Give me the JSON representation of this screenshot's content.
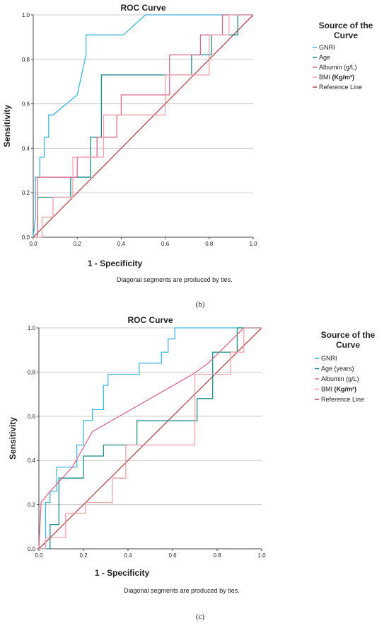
{
  "chart_data": [
    {
      "type": "line",
      "panel_label": "(b)",
      "title": "ROC Curve",
      "xlabel": "1 - Specificity",
      "ylabel": "Sensitivity",
      "xlim": [
        0,
        1
      ],
      "ylim": [
        0,
        1
      ],
      "xticks": [
        "0.0",
        "0.2",
        "0.4",
        "0.6",
        "0.8",
        "1.0"
      ],
      "yticks": [
        "0.0",
        "0.2",
        "0.4",
        "0.6",
        "0.8",
        "1.0"
      ],
      "grid": "horizontal",
      "footnote": "Diagonal segments are produced by ties.",
      "legend": {
        "title": "Source of the Curve",
        "placement": "right",
        "bmi_unit": "(Kg/m²)"
      },
      "series": [
        {
          "name": "GNRI",
          "color": "#3FB8DD",
          "x": [
            0,
            0.01,
            0.01,
            0.03,
            0.03,
            0.05,
            0.05,
            0.07,
            0.07,
            0.09,
            0.09,
            0.2,
            0.2,
            0.22,
            0.22,
            0.24,
            0.24,
            0.41,
            0.51,
            1
          ],
          "y": [
            0,
            0.09,
            0.27,
            0.27,
            0.36,
            0.36,
            0.45,
            0.45,
            0.55,
            0.55,
            0.55,
            0.64,
            0.64,
            0.73,
            0.73,
            0.82,
            0.91,
            0.91,
            1,
            1
          ]
        },
        {
          "name": "Age",
          "color": "#1F8A8A",
          "x": [
            0,
            0.02,
            0.02,
            0.17,
            0.17,
            0.26,
            0.26,
            0.31,
            0.31,
            0.72,
            0.72,
            0.81,
            0.81,
            0.93,
            0.93,
            1
          ],
          "y": [
            0,
            0,
            0.18,
            0.18,
            0.27,
            0.27,
            0.45,
            0.45,
            0.73,
            0.73,
            0.82,
            0.82,
            0.91,
            0.91,
            1,
            1
          ]
        },
        {
          "name": "Albumin (g/L)",
          "color": "#D86A8E",
          "x": [
            0,
            0.02,
            0.02,
            0.2,
            0.2,
            0.29,
            0.29,
            0.38,
            0.38,
            0.4,
            0.4,
            0.62,
            0.62,
            0.76,
            0.76,
            0.86,
            0.86,
            1
          ],
          "y": [
            0,
            0,
            0.27,
            0.27,
            0.36,
            0.36,
            0.45,
            0.45,
            0.55,
            0.55,
            0.64,
            0.64,
            0.82,
            0.82,
            0.91,
            0.91,
            1,
            1
          ]
        },
        {
          "name": "BMI",
          "color": "#F0A0A8",
          "x": [
            0,
            0.04,
            0.04,
            0.09,
            0.09,
            0.18,
            0.18,
            0.32,
            0.32,
            0.6,
            0.6,
            0.8,
            0.8,
            0.89,
            0.89,
            1
          ],
          "y": [
            0,
            0,
            0.09,
            0.09,
            0.18,
            0.18,
            0.36,
            0.36,
            0.55,
            0.55,
            0.73,
            0.73,
            0.91,
            0.91,
            1,
            1
          ]
        },
        {
          "name": "Reference Line",
          "color": "#B04A4A",
          "x": [
            0,
            1
          ],
          "y": [
            0,
            1
          ]
        }
      ]
    },
    {
      "type": "line",
      "panel_label": "(c)",
      "title": "ROC Curve",
      "xlabel": "1 - Specificity",
      "ylabel": "Sensitivity",
      "xlim": [
        0,
        1
      ],
      "ylim": [
        0,
        1
      ],
      "xticks": [
        "0.0",
        "0.2",
        "0.4",
        "0.6",
        "0.8",
        "1.0"
      ],
      "yticks": [
        "0.0",
        "0.2",
        "0.4",
        "0.6",
        "0.8",
        "1.0"
      ],
      "grid": "horizontal",
      "footnote": "Diagonal segments are produced by ties.",
      "legend": {
        "title": "Source of the Curve",
        "placement": "right",
        "bmi_unit": "(Kg/m²)"
      },
      "series": [
        {
          "name": "GNRI",
          "color": "#3FB8DD",
          "x": [
            0,
            0.03,
            0.03,
            0.05,
            0.05,
            0.08,
            0.08,
            0.17,
            0.17,
            0.2,
            0.2,
            0.24,
            0.24,
            0.29,
            0.29,
            0.31,
            0.31,
            0.45,
            0.45,
            0.55,
            0.55,
            0.58,
            0.58,
            0.61,
            0.61,
            0.9,
            1
          ],
          "y": [
            0,
            0,
            0.21,
            0.21,
            0.26,
            0.26,
            0.37,
            0.37,
            0.47,
            0.47,
            0.58,
            0.58,
            0.63,
            0.63,
            0.74,
            0.74,
            0.79,
            0.79,
            0.84,
            0.84,
            0.89,
            0.89,
            0.95,
            0.95,
            1,
            1,
            1
          ]
        },
        {
          "name": "Age (years)",
          "color": "#1F8A8A",
          "x": [
            0,
            0.05,
            0.05,
            0.09,
            0.09,
            0.2,
            0.2,
            0.29,
            0.29,
            0.44,
            0.44,
            0.71,
            0.71,
            0.78,
            0.78,
            0.89,
            0.89,
            1
          ],
          "y": [
            0,
            0,
            0.11,
            0.11,
            0.32,
            0.32,
            0.42,
            0.42,
            0.47,
            0.47,
            0.58,
            0.58,
            0.68,
            0.68,
            0.89,
            0.89,
            1,
            1
          ]
        },
        {
          "name": "Albumin (g/L)",
          "color": "#D86A8E",
          "x": [
            0,
            0.01,
            0.05,
            0.15,
            0.24,
            0.69,
            0.76,
            0.92,
            1
          ],
          "y": [
            0,
            0.21,
            0.26,
            0.37,
            0.53,
            0.79,
            0.84,
            1,
            1
          ]
        },
        {
          "name": "BMI",
          "color": "#F0A0A8",
          "x": [
            0,
            0.03,
            0.03,
            0.12,
            0.12,
            0.21,
            0.21,
            0.33,
            0.33,
            0.39,
            0.39,
            0.7,
            0.7,
            0.86,
            0.86,
            0.92,
            0.92,
            1
          ],
          "y": [
            0,
            0,
            0.05,
            0.05,
            0.16,
            0.16,
            0.21,
            0.21,
            0.32,
            0.32,
            0.47,
            0.47,
            0.79,
            0.79,
            0.89,
            0.89,
            1,
            1
          ]
        },
        {
          "name": "Reference Line",
          "color": "#B04A4A",
          "x": [
            0,
            1
          ],
          "y": [
            0,
            1
          ]
        }
      ]
    }
  ]
}
